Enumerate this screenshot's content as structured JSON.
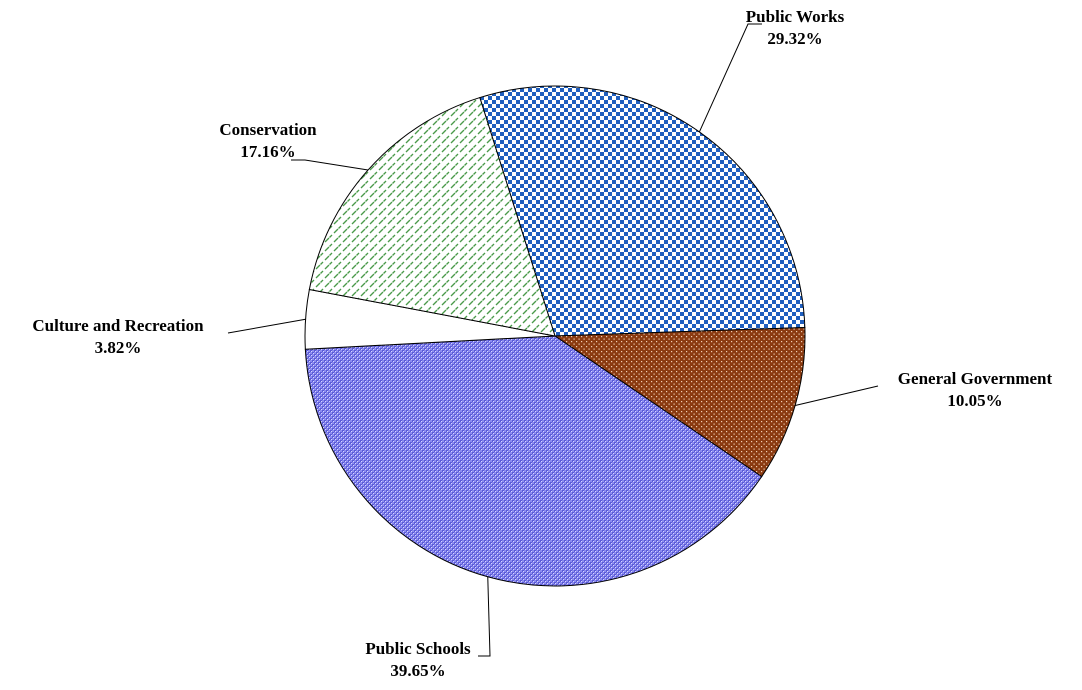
{
  "chart_data": {
    "type": "pie",
    "title": "",
    "slices": [
      {
        "label": "Public Works",
        "value_text": "29.32%",
        "value": 29.32,
        "pattern": "checker",
        "color": "#1f5fbf"
      },
      {
        "label": "General Government",
        "value_text": "10.05%",
        "value": 10.05,
        "pattern": "dots",
        "color": "#8a3a10"
      },
      {
        "label": "Public Schools",
        "value_text": "39.65%",
        "value": 39.65,
        "pattern": "fine-grid",
        "color": "#5a5ad6"
      },
      {
        "label": "Culture and Recreation",
        "value_text": "3.82%",
        "value": 3.82,
        "pattern": "solid",
        "color": "#ffffff"
      },
      {
        "label": "Conservation",
        "value_text": "17.16%",
        "value": 17.16,
        "pattern": "diagonal-dash",
        "color": "#4a9a4a"
      }
    ],
    "legend": "none"
  }
}
